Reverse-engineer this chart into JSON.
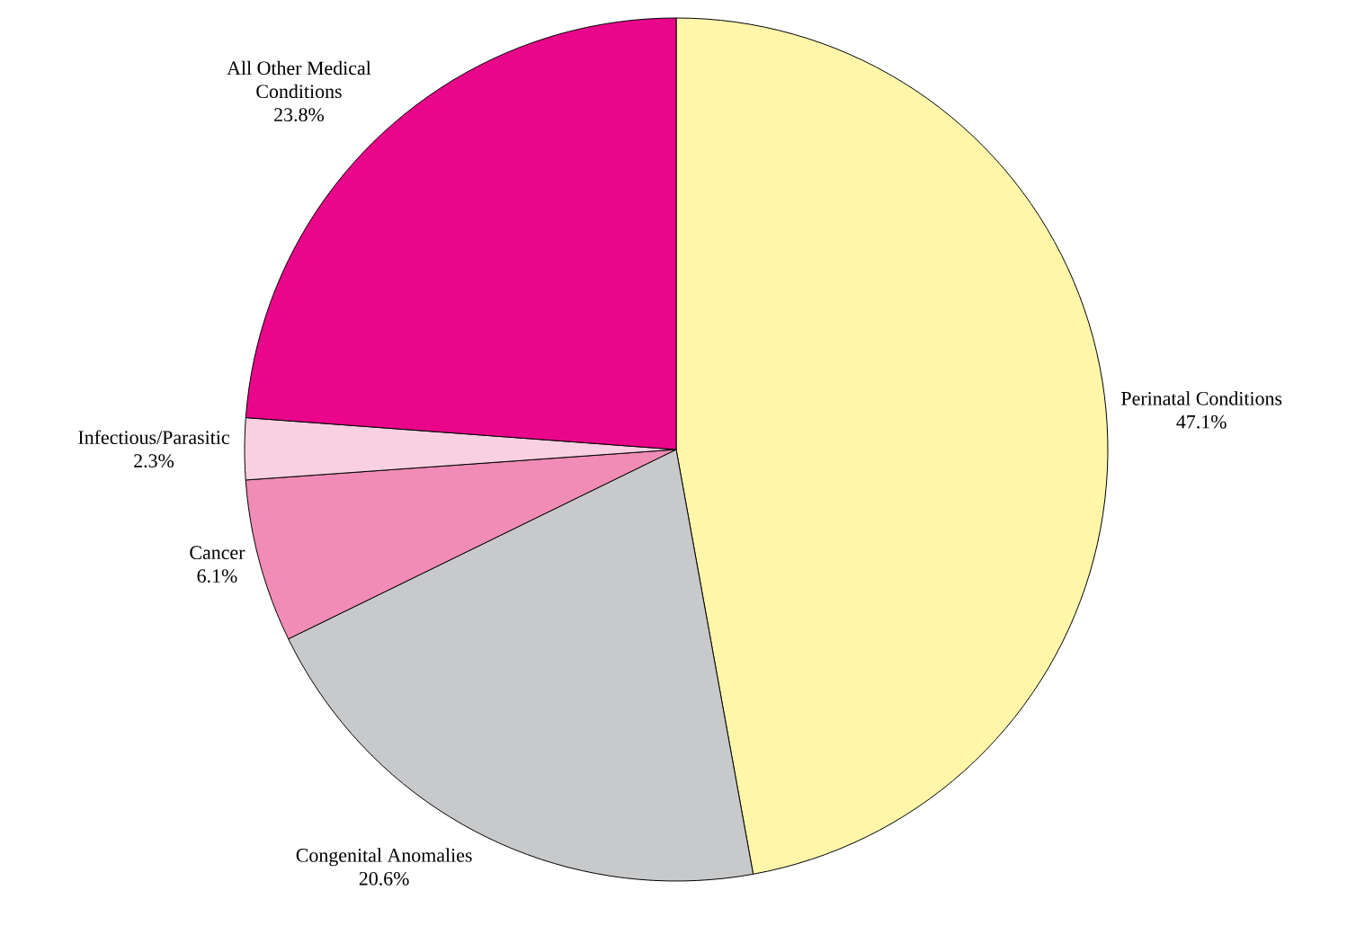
{
  "chart_data": {
    "type": "pie",
    "categories": [
      "Perinatal Conditions",
      "Congenital Anomalies",
      "Cancer",
      "Infectious/Parasitic",
      "All Other Medical Conditions"
    ],
    "values": [
      47.1,
      20.6,
      6.1,
      2.3,
      23.8
    ],
    "value_labels": [
      "47.1%",
      "20.6%",
      "6.1%",
      "2.3%",
      "23.8%"
    ],
    "colors": [
      "#fff6aa",
      "#c8c9cb",
      "#f08cb5",
      "#f9d0e1",
      "#ea068a"
    ]
  }
}
